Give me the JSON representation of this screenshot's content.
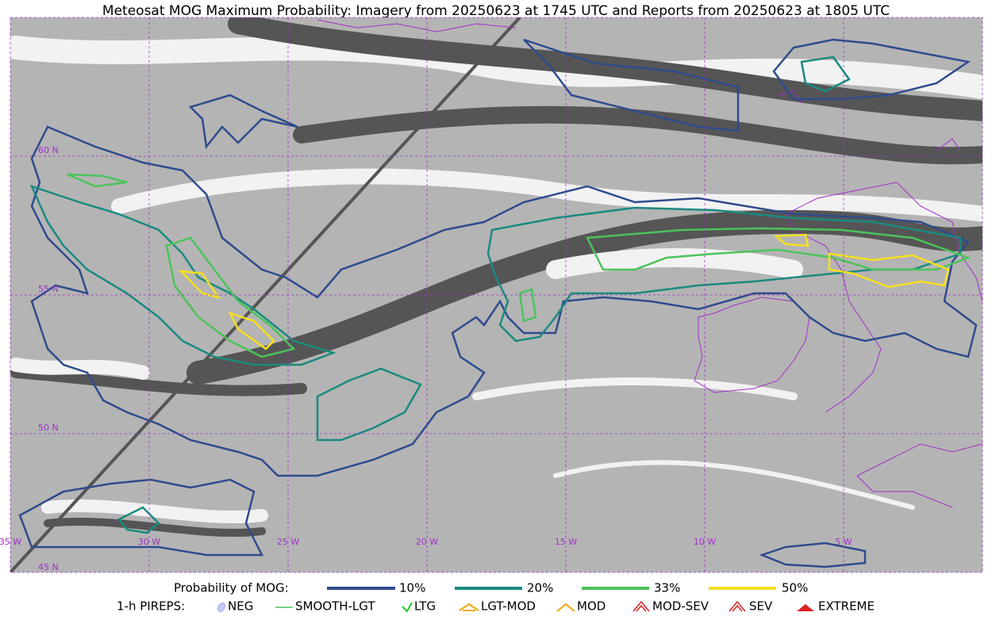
{
  "title": "Meteosat MOG Maximum Probability: Imagery from 20250623 at 1745 UTC and Reports from 20250623 at 1805 UTC",
  "map": {
    "lat_labels": [
      "60 N",
      "55 N",
      "50 N",
      "45 N"
    ],
    "lon_labels": [
      "35 W",
      "30 W",
      "25 W",
      "20 W",
      "15 W",
      "10 W",
      "5 W"
    ]
  },
  "legend": {
    "probability": {
      "label": "Probability of MOG:",
      "items": [
        "10%",
        "20%",
        "33%",
        "50%"
      ]
    },
    "pireps": {
      "label": "1-h PIREPS:",
      "items": [
        "NEG",
        "SMOOTH-LGT",
        "LTG",
        "LGT-MOD",
        "MOD",
        "MOD-SEV",
        "SEV",
        "EXTREME"
      ]
    }
  }
}
